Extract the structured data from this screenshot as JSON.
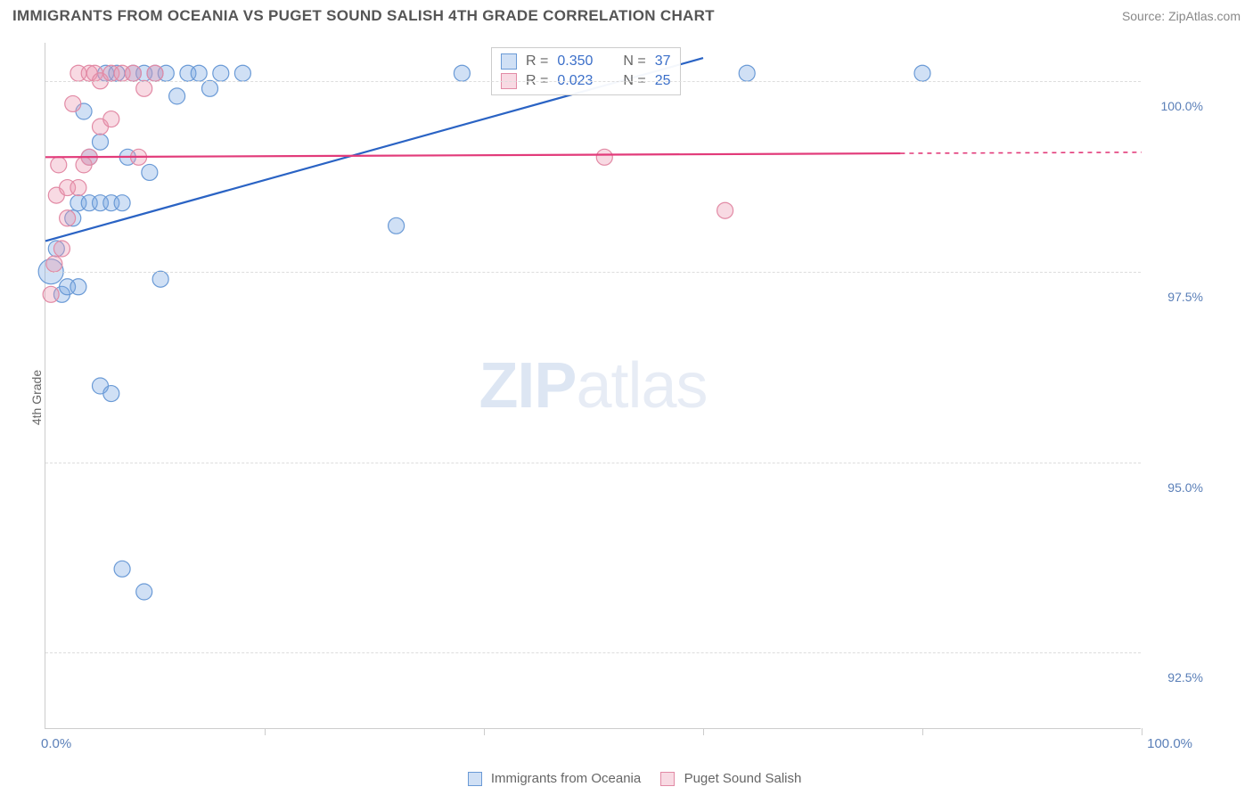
{
  "title": "IMMIGRANTS FROM OCEANIA VS PUGET SOUND SALISH 4TH GRADE CORRELATION CHART",
  "source_label": "Source: ZipAtlas.com",
  "ylabel": "4th Grade",
  "watermark_a": "ZIP",
  "watermark_b": "atlas",
  "chart": {
    "type": "scatter",
    "background_color": "#ffffff",
    "grid_color": "#dddddd",
    "xlim": [
      0,
      100
    ],
    "ylim": [
      91.5,
      100.5
    ],
    "xtick_positions": [
      0,
      20,
      40,
      60,
      80,
      100
    ],
    "x_axis_label_left": "0.0%",
    "x_axis_label_right": "100.0%",
    "yticks": [
      {
        "v": 92.5,
        "label": "92.5%"
      },
      {
        "v": 95.0,
        "label": "95.0%"
      },
      {
        "v": 97.5,
        "label": "97.5%"
      },
      {
        "v": 100.0,
        "label": "100.0%"
      }
    ],
    "series": [
      {
        "name": "Immigrants from Oceania",
        "fill": "rgba(120,165,225,0.35)",
        "stroke": "#6a9ad6",
        "line_color": "#2a63c4",
        "r_value": "0.350",
        "n_value": "37",
        "trend": {
          "x1": 0,
          "y1": 97.9,
          "x2": 60,
          "y2": 100.3
        },
        "marker_r": 9,
        "points": [
          {
            "x": 0.5,
            "y": 97.5,
            "r": 14
          },
          {
            "x": 1,
            "y": 97.8
          },
          {
            "x": 1.5,
            "y": 97.2
          },
          {
            "x": 2,
            "y": 97.3
          },
          {
            "x": 3,
            "y": 97.3
          },
          {
            "x": 2.5,
            "y": 98.2
          },
          {
            "x": 3,
            "y": 98.4
          },
          {
            "x": 4,
            "y": 98.4
          },
          {
            "x": 5,
            "y": 98.4
          },
          {
            "x": 6,
            "y": 98.4
          },
          {
            "x": 7,
            "y": 98.4
          },
          {
            "x": 4,
            "y": 99.0
          },
          {
            "x": 5,
            "y": 99.2
          },
          {
            "x": 5.5,
            "y": 100.1
          },
          {
            "x": 6.5,
            "y": 100.1
          },
          {
            "x": 8,
            "y": 100.1
          },
          {
            "x": 9,
            "y": 100.1
          },
          {
            "x": 10,
            "y": 100.1
          },
          {
            "x": 11,
            "y": 100.1
          },
          {
            "x": 13,
            "y": 100.1
          },
          {
            "x": 14,
            "y": 100.1
          },
          {
            "x": 15,
            "y": 99.9
          },
          {
            "x": 16,
            "y": 100.1
          },
          {
            "x": 12,
            "y": 99.8
          },
          {
            "x": 18,
            "y": 100.1
          },
          {
            "x": 10.5,
            "y": 97.4
          },
          {
            "x": 5,
            "y": 96.0
          },
          {
            "x": 6,
            "y": 95.9
          },
          {
            "x": 7,
            "y": 93.6
          },
          {
            "x": 9,
            "y": 93.3
          },
          {
            "x": 32,
            "y": 98.1
          },
          {
            "x": 38,
            "y": 100.1
          },
          {
            "x": 64,
            "y": 100.1
          },
          {
            "x": 80,
            "y": 100.1
          },
          {
            "x": 3.5,
            "y": 99.6
          },
          {
            "x": 7.5,
            "y": 99.0
          },
          {
            "x": 9.5,
            "y": 98.8
          }
        ]
      },
      {
        "name": "Puget Sound Salish",
        "fill": "rgba(235,150,175,0.35)",
        "stroke": "#e28aa5",
        "line_color": "#e23b7a",
        "r_value": "0.023",
        "n_value": "25",
        "trend": {
          "x1": 0,
          "y1": 99.0,
          "x2": 78,
          "y2": 99.05
        },
        "trend_dash_after": 78,
        "marker_r": 9,
        "points": [
          {
            "x": 0.8,
            "y": 97.6
          },
          {
            "x": 1.5,
            "y": 97.8
          },
          {
            "x": 2,
            "y": 98.2
          },
          {
            "x": 1,
            "y": 98.5
          },
          {
            "x": 2,
            "y": 98.6
          },
          {
            "x": 3,
            "y": 98.6
          },
          {
            "x": 0.5,
            "y": 97.2
          },
          {
            "x": 4,
            "y": 99.0
          },
          {
            "x": 5,
            "y": 99.4
          },
          {
            "x": 3,
            "y": 100.1
          },
          {
            "x": 4,
            "y": 100.1
          },
          {
            "x": 4.5,
            "y": 100.1
          },
          {
            "x": 5,
            "y": 100.0
          },
          {
            "x": 6,
            "y": 100.1
          },
          {
            "x": 7,
            "y": 100.1
          },
          {
            "x": 8,
            "y": 100.1
          },
          {
            "x": 8.5,
            "y": 99.0
          },
          {
            "x": 62,
            "y": 98.3
          },
          {
            "x": 51,
            "y": 99.0
          },
          {
            "x": 3.5,
            "y": 98.9
          },
          {
            "x": 2.5,
            "y": 99.7
          },
          {
            "x": 6,
            "y": 99.5
          },
          {
            "x": 1.2,
            "y": 98.9
          },
          {
            "x": 9,
            "y": 99.9
          },
          {
            "x": 10,
            "y": 100.1
          }
        ]
      }
    ]
  },
  "bottom_legend": {
    "a_label": "Immigrants from Oceania",
    "b_label": "Puget Sound Salish"
  },
  "top_legend_labels": {
    "r": "R =",
    "n": "N ="
  }
}
